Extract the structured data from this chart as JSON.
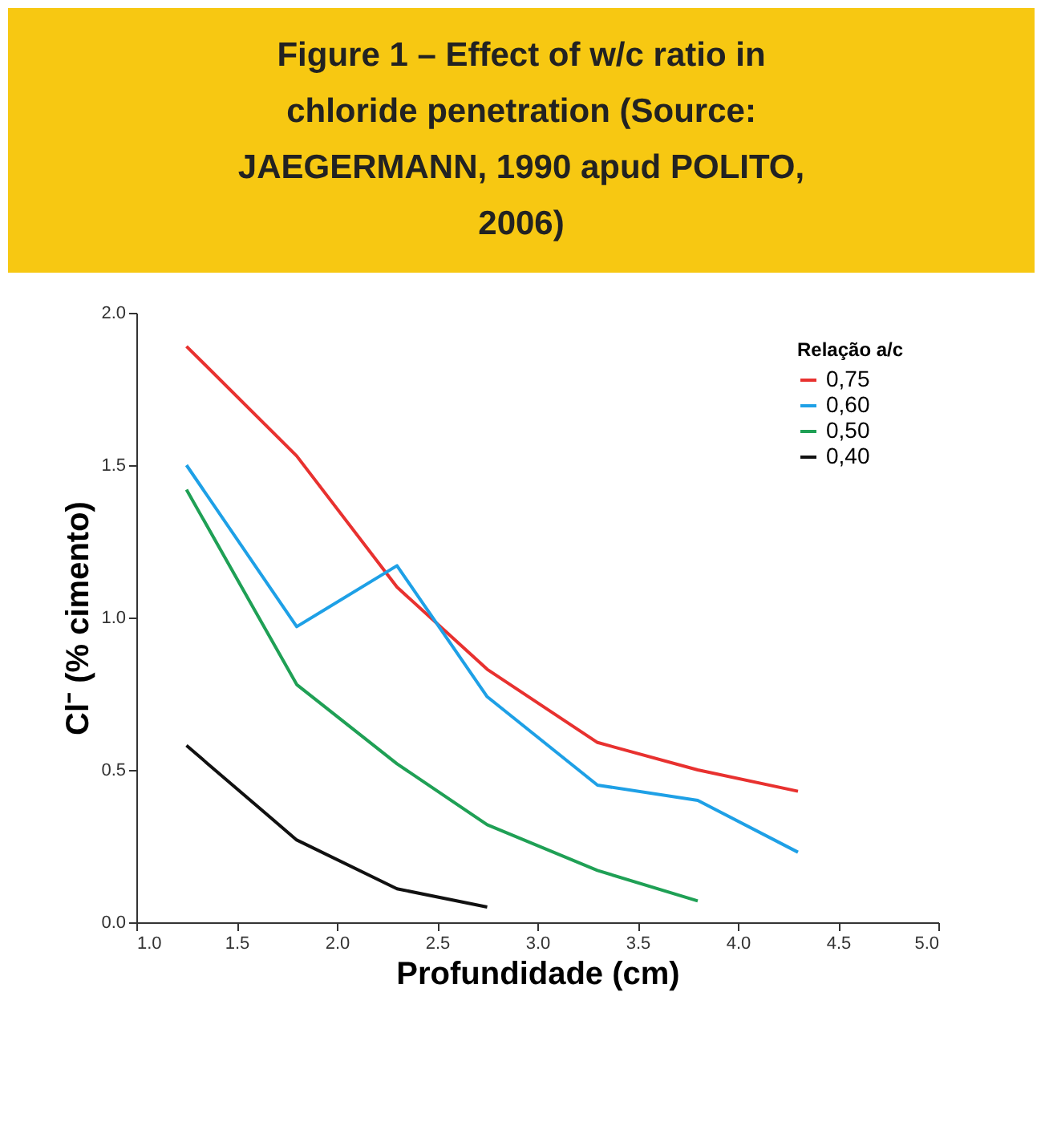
{
  "chart_data": {
    "type": "line",
    "title": "Figure 1 – Effect of w/c ratio in chloride penetration (Source: JAEGERMANN, 1990 apud POLITO, 2006)",
    "xlabel": "Profundidade (cm)",
    "ylabel": "Cl⁻ (% cimento)",
    "legend_title": "Relação  a/c",
    "legend": "top right",
    "grid": false,
    "marker": "none",
    "line_style": "solid",
    "xlim": [
      1.0,
      5.0
    ],
    "xticks": [
      {
        "value": 1,
        "label": "1.0"
      },
      1.5,
      {
        "value": 2,
        "label": "2.0"
      },
      2.5,
      {
        "value": 3,
        "label": "3.0"
      },
      3.5,
      {
        "value": 4,
        "label": "4.0"
      },
      4.5,
      {
        "value": 5,
        "label": "5.0"
      }
    ],
    "ylim": [
      0.0,
      2.0
    ],
    "yticks": [
      {
        "value": 0,
        "label": "0.0"
      },
      0.5,
      {
        "value": 1,
        "label": "1.0"
      },
      1.5,
      {
        "value": 2,
        "label": "2.0"
      }
    ],
    "series": [
      {
        "name": "0,75",
        "color": "#e8312f",
        "x": [
          1.25,
          1.8,
          2.3,
          2.75,
          3.3,
          3.8,
          4.3
        ],
        "values": [
          1.89,
          1.53,
          1.1,
          0.83,
          0.59,
          0.5,
          0.43
        ]
      },
      {
        "name": "0,60",
        "color": "#1ea0e6",
        "x": [
          1.25,
          1.8,
          2.3,
          2.75,
          3.3,
          3.8,
          4.3
        ],
        "values": [
          1.5,
          0.97,
          1.17,
          0.74,
          0.45,
          0.4,
          0.23
        ]
      },
      {
        "name": "0,50",
        "color": "#1fa055",
        "x": [
          1.25,
          1.8,
          2.3,
          2.75,
          3.3,
          3.8
        ],
        "values": [
          1.42,
          0.78,
          0.52,
          0.32,
          0.17,
          0.07
        ]
      },
      {
        "name": "0,40",
        "color": "#111111",
        "x": [
          1.25,
          1.8,
          2.3,
          2.75
        ],
        "values": [
          0.58,
          0.27,
          0.11,
          0.05
        ]
      }
    ]
  }
}
